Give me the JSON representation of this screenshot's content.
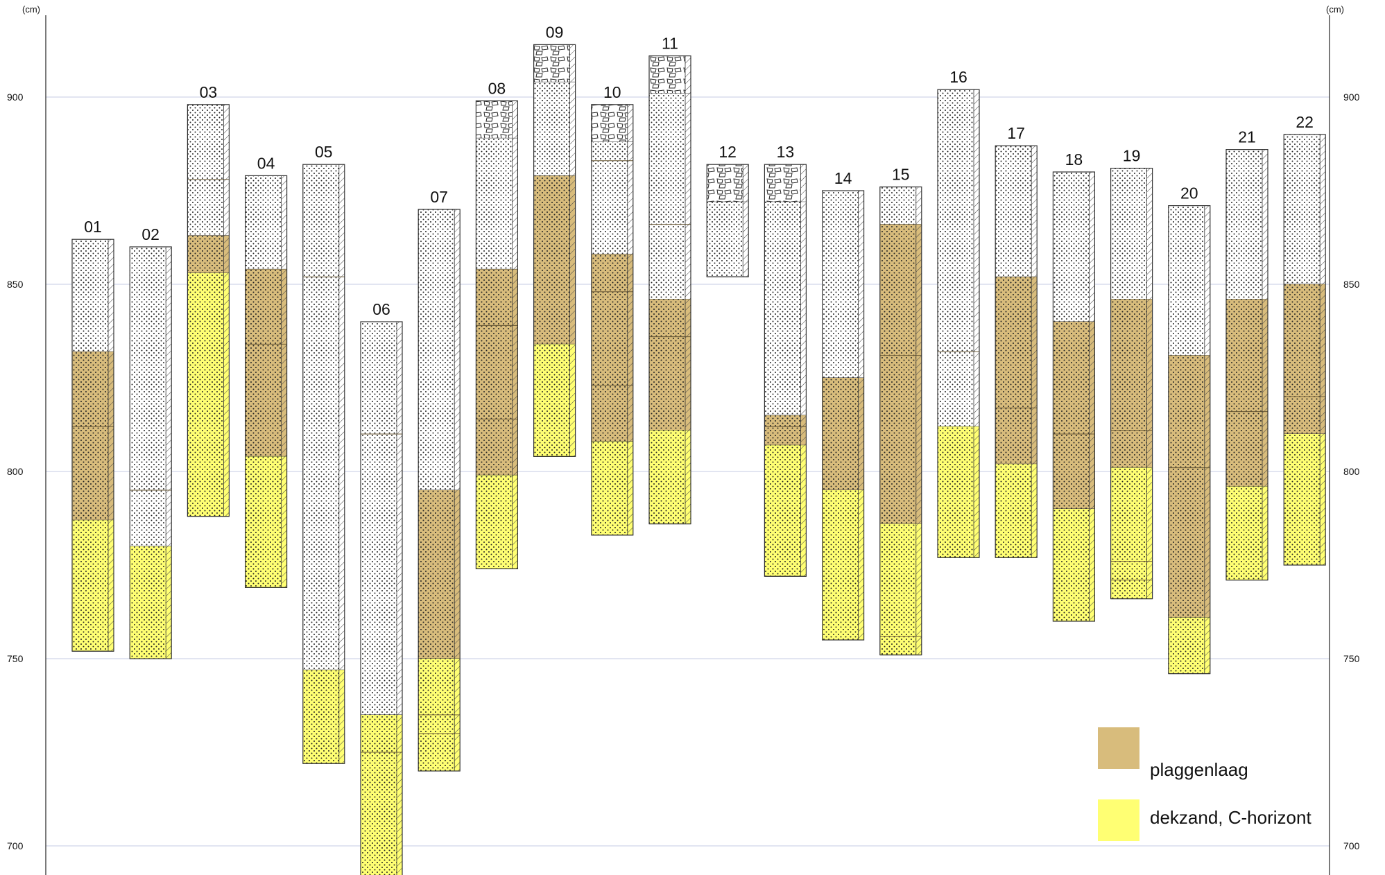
{
  "axes": {
    "unit_left": "(cm)",
    "unit_right": "(cm)",
    "ticks": [
      700,
      750,
      800,
      850,
      900
    ],
    "ylim": [
      692,
      920
    ]
  },
  "colors": {
    "plaggenlaag": "#d8bc7c",
    "dekzand": "#ffff73",
    "top": "#ffffff",
    "grid": "#c5cbe3",
    "outline": "#333333"
  },
  "legend": {
    "items": [
      {
        "key": "plaggenlaag",
        "label": "plaggenlaag"
      },
      {
        "key": "dekzand",
        "label": "dekzand, C-horizont"
      }
    ]
  },
  "chart_data": {
    "type": "diagram",
    "cores": [
      {
        "id": "01",
        "layers": [
          {
            "top": 862,
            "bottom": 832,
            "kind": "top"
          },
          {
            "top": 832,
            "bottom": 787,
            "kind": "plaggenlaag",
            "lines": [
              812
            ]
          },
          {
            "top": 787,
            "bottom": 752,
            "kind": "dekzand"
          }
        ]
      },
      {
        "id": "02",
        "layers": [
          {
            "top": 860,
            "bottom": 780,
            "kind": "top",
            "lines": [
              795
            ]
          },
          {
            "top": 780,
            "bottom": 750,
            "kind": "dekzand"
          }
        ]
      },
      {
        "id": "03",
        "layers": [
          {
            "top": 898,
            "bottom": 863,
            "kind": "top",
            "lines": [
              878
            ]
          },
          {
            "top": 863,
            "bottom": 853,
            "kind": "plaggenlaag"
          },
          {
            "top": 853,
            "bottom": 788,
            "kind": "dekzand"
          }
        ]
      },
      {
        "id": "04",
        "layers": [
          {
            "top": 879,
            "bottom": 854,
            "kind": "top"
          },
          {
            "top": 854,
            "bottom": 804,
            "kind": "plaggenlaag",
            "lines": [
              834
            ]
          },
          {
            "top": 804,
            "bottom": 769,
            "kind": "dekzand"
          }
        ]
      },
      {
        "id": "05",
        "layers": [
          {
            "top": 882,
            "bottom": 747,
            "kind": "top",
            "lines": [
              852
            ]
          },
          {
            "top": 747,
            "bottom": 722,
            "kind": "dekzand"
          }
        ]
      },
      {
        "id": "06",
        "layers": [
          {
            "top": 840,
            "bottom": 735,
            "kind": "top",
            "lines": [
              810
            ]
          },
          {
            "top": 735,
            "bottom": 692,
            "kind": "dekzand",
            "lines": [
              725
            ]
          }
        ]
      },
      {
        "id": "07",
        "layers": [
          {
            "top": 870,
            "bottom": 795,
            "kind": "top"
          },
          {
            "top": 795,
            "bottom": 750,
            "kind": "plaggenlaag"
          },
          {
            "top": 750,
            "bottom": 720,
            "kind": "dekzand",
            "lines": [
              735,
              730
            ]
          }
        ]
      },
      {
        "id": "08",
        "layers": [
          {
            "top": 899,
            "bottom": 889,
            "kind": "rubble"
          },
          {
            "top": 889,
            "bottom": 854,
            "kind": "top"
          },
          {
            "top": 854,
            "bottom": 799,
            "kind": "plaggenlaag",
            "lines": [
              839,
              814
            ]
          },
          {
            "top": 799,
            "bottom": 774,
            "kind": "dekzand"
          }
        ]
      },
      {
        "id": "09",
        "layers": [
          {
            "top": 914,
            "bottom": 904,
            "kind": "rubble"
          },
          {
            "top": 904,
            "bottom": 879,
            "kind": "top"
          },
          {
            "top": 879,
            "bottom": 834,
            "kind": "plaggenlaag"
          },
          {
            "top": 834,
            "bottom": 804,
            "kind": "dekzand"
          }
        ]
      },
      {
        "id": "10",
        "layers": [
          {
            "top": 898,
            "bottom": 888,
            "kind": "rubble"
          },
          {
            "top": 888,
            "bottom": 858,
            "kind": "top",
            "lines": [
              883
            ]
          },
          {
            "top": 858,
            "bottom": 808,
            "kind": "plaggenlaag",
            "lines": [
              848,
              823
            ]
          },
          {
            "top": 808,
            "bottom": 783,
            "kind": "dekzand"
          }
        ]
      },
      {
        "id": "11",
        "layers": [
          {
            "top": 911,
            "bottom": 901,
            "kind": "rubble"
          },
          {
            "top": 901,
            "bottom": 846,
            "kind": "top",
            "lines": [
              866
            ]
          },
          {
            "top": 846,
            "bottom": 811,
            "kind": "plaggenlaag",
            "lines": [
              836
            ]
          },
          {
            "top": 811,
            "bottom": 786,
            "kind": "dekzand"
          }
        ]
      },
      {
        "id": "12",
        "layers": [
          {
            "top": 882,
            "bottom": 872,
            "kind": "rubble"
          },
          {
            "top": 872,
            "bottom": 852,
            "kind": "top"
          }
        ]
      },
      {
        "id": "13",
        "layers": [
          {
            "top": 882,
            "bottom": 872,
            "kind": "rubble"
          },
          {
            "top": 872,
            "bottom": 815,
            "kind": "top"
          },
          {
            "top": 815,
            "bottom": 807,
            "kind": "plaggenlaag",
            "lines": [
              812
            ]
          },
          {
            "top": 807,
            "bottom": 772,
            "kind": "dekzand"
          }
        ]
      },
      {
        "id": "14",
        "layers": [
          {
            "top": 875,
            "bottom": 825,
            "kind": "top"
          },
          {
            "top": 825,
            "bottom": 795,
            "kind": "plaggenlaag"
          },
          {
            "top": 795,
            "bottom": 755,
            "kind": "dekzand"
          }
        ]
      },
      {
        "id": "15",
        "layers": [
          {
            "top": 876,
            "bottom": 866,
            "kind": "top"
          },
          {
            "top": 866,
            "bottom": 786,
            "kind": "plaggenlaag",
            "lines": [
              831
            ]
          },
          {
            "top": 786,
            "bottom": 751,
            "kind": "dekzand",
            "lines": [
              756
            ]
          }
        ]
      },
      {
        "id": "16",
        "layers": [
          {
            "top": 902,
            "bottom": 812,
            "kind": "top",
            "lines": [
              832
            ]
          },
          {
            "top": 812,
            "bottom": 777,
            "kind": "dekzand"
          }
        ]
      },
      {
        "id": "17",
        "layers": [
          {
            "top": 887,
            "bottom": 852,
            "kind": "top"
          },
          {
            "top": 852,
            "bottom": 802,
            "kind": "plaggenlaag",
            "lines": [
              817
            ]
          },
          {
            "top": 802,
            "bottom": 777,
            "kind": "dekzand"
          }
        ]
      },
      {
        "id": "18",
        "layers": [
          {
            "top": 880,
            "bottom": 840,
            "kind": "top"
          },
          {
            "top": 840,
            "bottom": 790,
            "kind": "plaggenlaag",
            "lines": [
              810
            ]
          },
          {
            "top": 790,
            "bottom": 760,
            "kind": "dekzand"
          }
        ]
      },
      {
        "id": "19",
        "layers": [
          {
            "top": 881,
            "bottom": 846,
            "kind": "top"
          },
          {
            "top": 846,
            "bottom": 801,
            "kind": "plaggenlaag",
            "lines": [
              811
            ]
          },
          {
            "top": 801,
            "bottom": 766,
            "kind": "dekzand",
            "lines": [
              776,
              771
            ]
          }
        ]
      },
      {
        "id": "20",
        "layers": [
          {
            "top": 871,
            "bottom": 831,
            "kind": "top"
          },
          {
            "top": 831,
            "bottom": 761,
            "kind": "plaggenlaag",
            "lines": [
              801
            ]
          },
          {
            "top": 761,
            "bottom": 746,
            "kind": "dekzand"
          }
        ]
      },
      {
        "id": "21",
        "layers": [
          {
            "top": 886,
            "bottom": 846,
            "kind": "top"
          },
          {
            "top": 846,
            "bottom": 796,
            "kind": "plaggenlaag",
            "lines": [
              816
            ]
          },
          {
            "top": 796,
            "bottom": 771,
            "kind": "dekzand"
          }
        ]
      },
      {
        "id": "22",
        "layers": [
          {
            "top": 890,
            "bottom": 850,
            "kind": "top"
          },
          {
            "top": 850,
            "bottom": 810,
            "kind": "plaggenlaag",
            "lines": [
              820
            ]
          },
          {
            "top": 810,
            "bottom": 775,
            "kind": "dekzand"
          }
        ]
      }
    ]
  }
}
